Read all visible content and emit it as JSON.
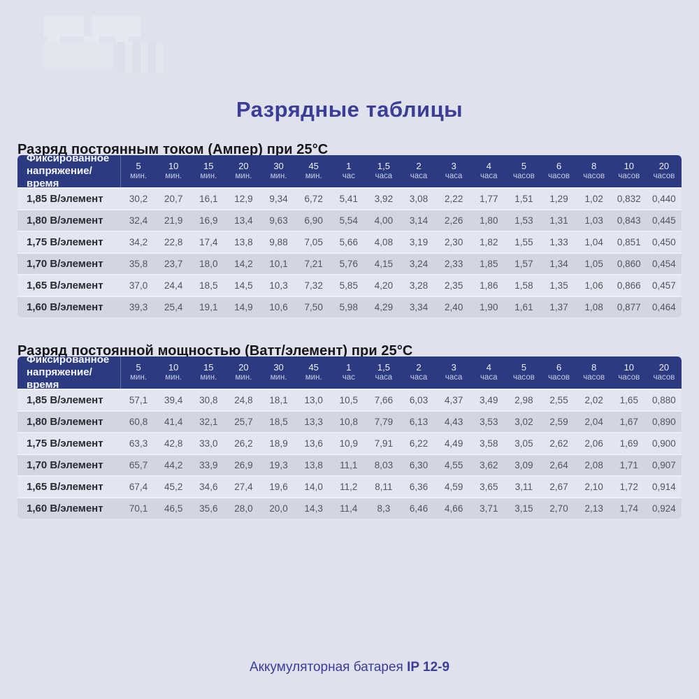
{
  "page": {
    "title": "Разрядные таблицы",
    "footer_text": "Аккумуляторная батарея",
    "footer_model": "IP 12-9"
  },
  "colors": {
    "background": "#dfe1ec",
    "header_navy": "#2c3a82",
    "title_indigo": "#3a3e96",
    "row_light": "#e3e5f0",
    "row_dark": "#d3d5e2",
    "data_text": "#54545e"
  },
  "tables": [
    {
      "heading": "Разряд постоянным током (Ампер) при 25°C",
      "header_label": "Фиксированное напряжение/время",
      "columns": [
        {
          "value": "5",
          "unit": "мин."
        },
        {
          "value": "10",
          "unit": "мин."
        },
        {
          "value": "15",
          "unit": "мин."
        },
        {
          "value": "20",
          "unit": "мин."
        },
        {
          "value": "30",
          "unit": "мин."
        },
        {
          "value": "45",
          "unit": "мин."
        },
        {
          "value": "1",
          "unit": "час"
        },
        {
          "value": "1,5",
          "unit": "часа"
        },
        {
          "value": "2",
          "unit": "часа"
        },
        {
          "value": "3",
          "unit": "часа"
        },
        {
          "value": "4",
          "unit": "часа"
        },
        {
          "value": "5",
          "unit": "часов"
        },
        {
          "value": "6",
          "unit": "часов"
        },
        {
          "value": "8",
          "unit": "часов"
        },
        {
          "value": "10",
          "unit": "часов"
        },
        {
          "value": "20",
          "unit": "часов"
        }
      ],
      "rows": [
        {
          "label": "1,85 В/элемент",
          "values": [
            "30,2",
            "20,7",
            "16,1",
            "12,9",
            "9,34",
            "6,72",
            "5,41",
            "3,92",
            "3,08",
            "2,22",
            "1,77",
            "1,51",
            "1,29",
            "1,02",
            "0,832",
            "0,440"
          ]
        },
        {
          "label": "1,80 В/элемент",
          "values": [
            "32,4",
            "21,9",
            "16,9",
            "13,4",
            "9,63",
            "6,90",
            "5,54",
            "4,00",
            "3,14",
            "2,26",
            "1,80",
            "1,53",
            "1,31",
            "1,03",
            "0,843",
            "0,445"
          ]
        },
        {
          "label": "1,75 В/элемент",
          "values": [
            "34,2",
            "22,8",
            "17,4",
            "13,8",
            "9,88",
            "7,05",
            "5,66",
            "4,08",
            "3,19",
            "2,30",
            "1,82",
            "1,55",
            "1,33",
            "1,04",
            "0,851",
            "0,450"
          ]
        },
        {
          "label": "1,70 В/элемент",
          "values": [
            "35,8",
            "23,7",
            "18,0",
            "14,2",
            "10,1",
            "7,21",
            "5,76",
            "4,15",
            "3,24",
            "2,33",
            "1,85",
            "1,57",
            "1,34",
            "1,05",
            "0,860",
            "0,454"
          ]
        },
        {
          "label": "1,65 В/элемент",
          "values": [
            "37,0",
            "24,4",
            "18,5",
            "14,5",
            "10,3",
            "7,32",
            "5,85",
            "4,20",
            "3,28",
            "2,35",
            "1,86",
            "1,58",
            "1,35",
            "1,06",
            "0,866",
            "0,457"
          ]
        },
        {
          "label": "1,60 В/элемент",
          "values": [
            "39,3",
            "25,4",
            "19,1",
            "14,9",
            "10,6",
            "7,50",
            "5,98",
            "4,29",
            "3,34",
            "2,40",
            "1,90",
            "1,61",
            "1,37",
            "1,08",
            "0,877",
            "0,464"
          ]
        }
      ]
    },
    {
      "heading": "Разряд постоянной мощностью (Ватт/элемент) при 25°C",
      "header_label": "Фиксированное напряжение/время",
      "columns": [
        {
          "value": "5",
          "unit": "мин."
        },
        {
          "value": "10",
          "unit": "мин."
        },
        {
          "value": "15",
          "unit": "мин."
        },
        {
          "value": "20",
          "unit": "мин."
        },
        {
          "value": "30",
          "unit": "мин."
        },
        {
          "value": "45",
          "unit": "мин."
        },
        {
          "value": "1",
          "unit": "час"
        },
        {
          "value": "1,5",
          "unit": "часа"
        },
        {
          "value": "2",
          "unit": "часа"
        },
        {
          "value": "3",
          "unit": "часа"
        },
        {
          "value": "4",
          "unit": "часа"
        },
        {
          "value": "5",
          "unit": "часов"
        },
        {
          "value": "6",
          "unit": "часов"
        },
        {
          "value": "8",
          "unit": "часов"
        },
        {
          "value": "10",
          "unit": "часов"
        },
        {
          "value": "20",
          "unit": "часов"
        }
      ],
      "rows": [
        {
          "label": "1,85 В/элемент",
          "values": [
            "57,1",
            "39,4",
            "30,8",
            "24,8",
            "18,1",
            "13,0",
            "10,5",
            "7,66",
            "6,03",
            "4,37",
            "3,49",
            "2,98",
            "2,55",
            "2,02",
            "1,65",
            "0,880"
          ]
        },
        {
          "label": "1,80 В/элемент",
          "values": [
            "60,8",
            "41,4",
            "32,1",
            "25,7",
            "18,5",
            "13,3",
            "10,8",
            "7,79",
            "6,13",
            "4,43",
            "3,53",
            "3,02",
            "2,59",
            "2,04",
            "1,67",
            "0,890"
          ]
        },
        {
          "label": "1,75 В/элемент",
          "values": [
            "63,3",
            "42,8",
            "33,0",
            "26,2",
            "18,9",
            "13,6",
            "10,9",
            "7,91",
            "6,22",
            "4,49",
            "3,58",
            "3,05",
            "2,62",
            "2,06",
            "1,69",
            "0,900"
          ]
        },
        {
          "label": "1,70 В/элемент",
          "values": [
            "65,7",
            "44,2",
            "33,9",
            "26,9",
            "19,3",
            "13,8",
            "11,1",
            "8,03",
            "6,30",
            "4,55",
            "3,62",
            "3,09",
            "2,64",
            "2,08",
            "1,71",
            "0,907"
          ]
        },
        {
          "label": "1,65 В/элемент",
          "values": [
            "67,4",
            "45,2",
            "34,6",
            "27,4",
            "19,6",
            "14,0",
            "11,2",
            "8,11",
            "6,36",
            "4,59",
            "3,65",
            "3,11",
            "2,67",
            "2,10",
            "1,72",
            "0,914"
          ]
        },
        {
          "label": "1,60 В/элемент",
          "values": [
            "70,1",
            "46,5",
            "35,6",
            "28,0",
            "20,0",
            "14,3",
            "11,4",
            "8,3",
            "6,46",
            "4,66",
            "3,71",
            "3,15",
            "2,70",
            "2,13",
            "1,74",
            "0,924"
          ]
        }
      ]
    }
  ]
}
